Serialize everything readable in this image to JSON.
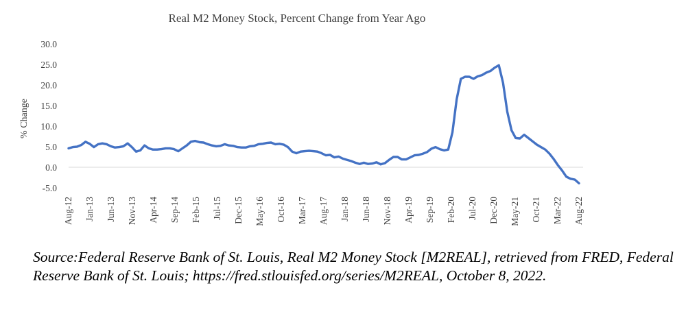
{
  "chart_data": {
    "type": "line",
    "title": "Real M2 Money Stock, Percent Change from Year Ago",
    "xlabel": "",
    "ylabel": "% Change",
    "ylim": [
      -5,
      30
    ],
    "y_ticks": [
      "30.0",
      "25.0",
      "20.0",
      "15.0",
      "10.0",
      "5.0",
      "0.0",
      "-5.0"
    ],
    "x_ticks": [
      "Aug-12",
      "Jan-13",
      "Jun-13",
      "Nov-13",
      "Apr-14",
      "Sep-14",
      "Feb-15",
      "Jul-15",
      "Dec-15",
      "May-16",
      "Oct-16",
      "Mar-17",
      "Aug-17",
      "Jan-18",
      "Jun-18",
      "Nov-18",
      "Apr-19",
      "Sep-19",
      "Feb-20",
      "Jul-20",
      "Dec-20",
      "May-21",
      "Oct-21",
      "Mar-22",
      "Aug-22"
    ],
    "grid": false,
    "line_color": "#4472C4",
    "series": [
      {
        "values": [
          4.6,
          4.9,
          5.0,
          5.4,
          6.2,
          5.7,
          4.9,
          5.6,
          5.8,
          5.6,
          5.1,
          4.8,
          4.9,
          5.1,
          5.8,
          4.9,
          3.8,
          4.1,
          5.3,
          4.6,
          4.3,
          4.3,
          4.4,
          4.6,
          4.6,
          4.4,
          3.9,
          4.6,
          5.3,
          6.2,
          6.4,
          6.1,
          6.0,
          5.6,
          5.3,
          5.1,
          5.2,
          5.6,
          5.3,
          5.2,
          4.9,
          4.8,
          4.8,
          5.1,
          5.2,
          5.6,
          5.7,
          5.9,
          6.0,
          5.6,
          5.7,
          5.5,
          4.9,
          3.8,
          3.4,
          3.8,
          3.9,
          4.0,
          3.9,
          3.8,
          3.4,
          2.9,
          3.0,
          2.4,
          2.6,
          2.1,
          1.8,
          1.5,
          1.1,
          0.8,
          1.1,
          0.8,
          0.9,
          1.2,
          0.7,
          1.0,
          1.8,
          2.5,
          2.5,
          1.9,
          1.9,
          2.4,
          2.9,
          3.0,
          3.3,
          3.7,
          4.5,
          4.9,
          4.4,
          4.1,
          4.3,
          8.5,
          16.5,
          21.5,
          22.0,
          22.0,
          21.5,
          22.1,
          22.4,
          23.0,
          23.4,
          24.2,
          24.8,
          20.5,
          13.5,
          9.0,
          7.1,
          7.0,
          7.9,
          7.1,
          6.3,
          5.5,
          4.9,
          4.3,
          3.3,
          2.0,
          0.5,
          -0.8,
          -2.3,
          -2.8,
          -3.0,
          -3.9
        ]
      }
    ]
  },
  "source_note": "Source:Federal Reserve Bank of St. Louis, Real M2 Money Stock [M2REAL], retrieved from FRED, Federal Reserve Bank of St. Louis; https://fred.stlouisfed.org/series/M2REAL, October 8, 2022."
}
